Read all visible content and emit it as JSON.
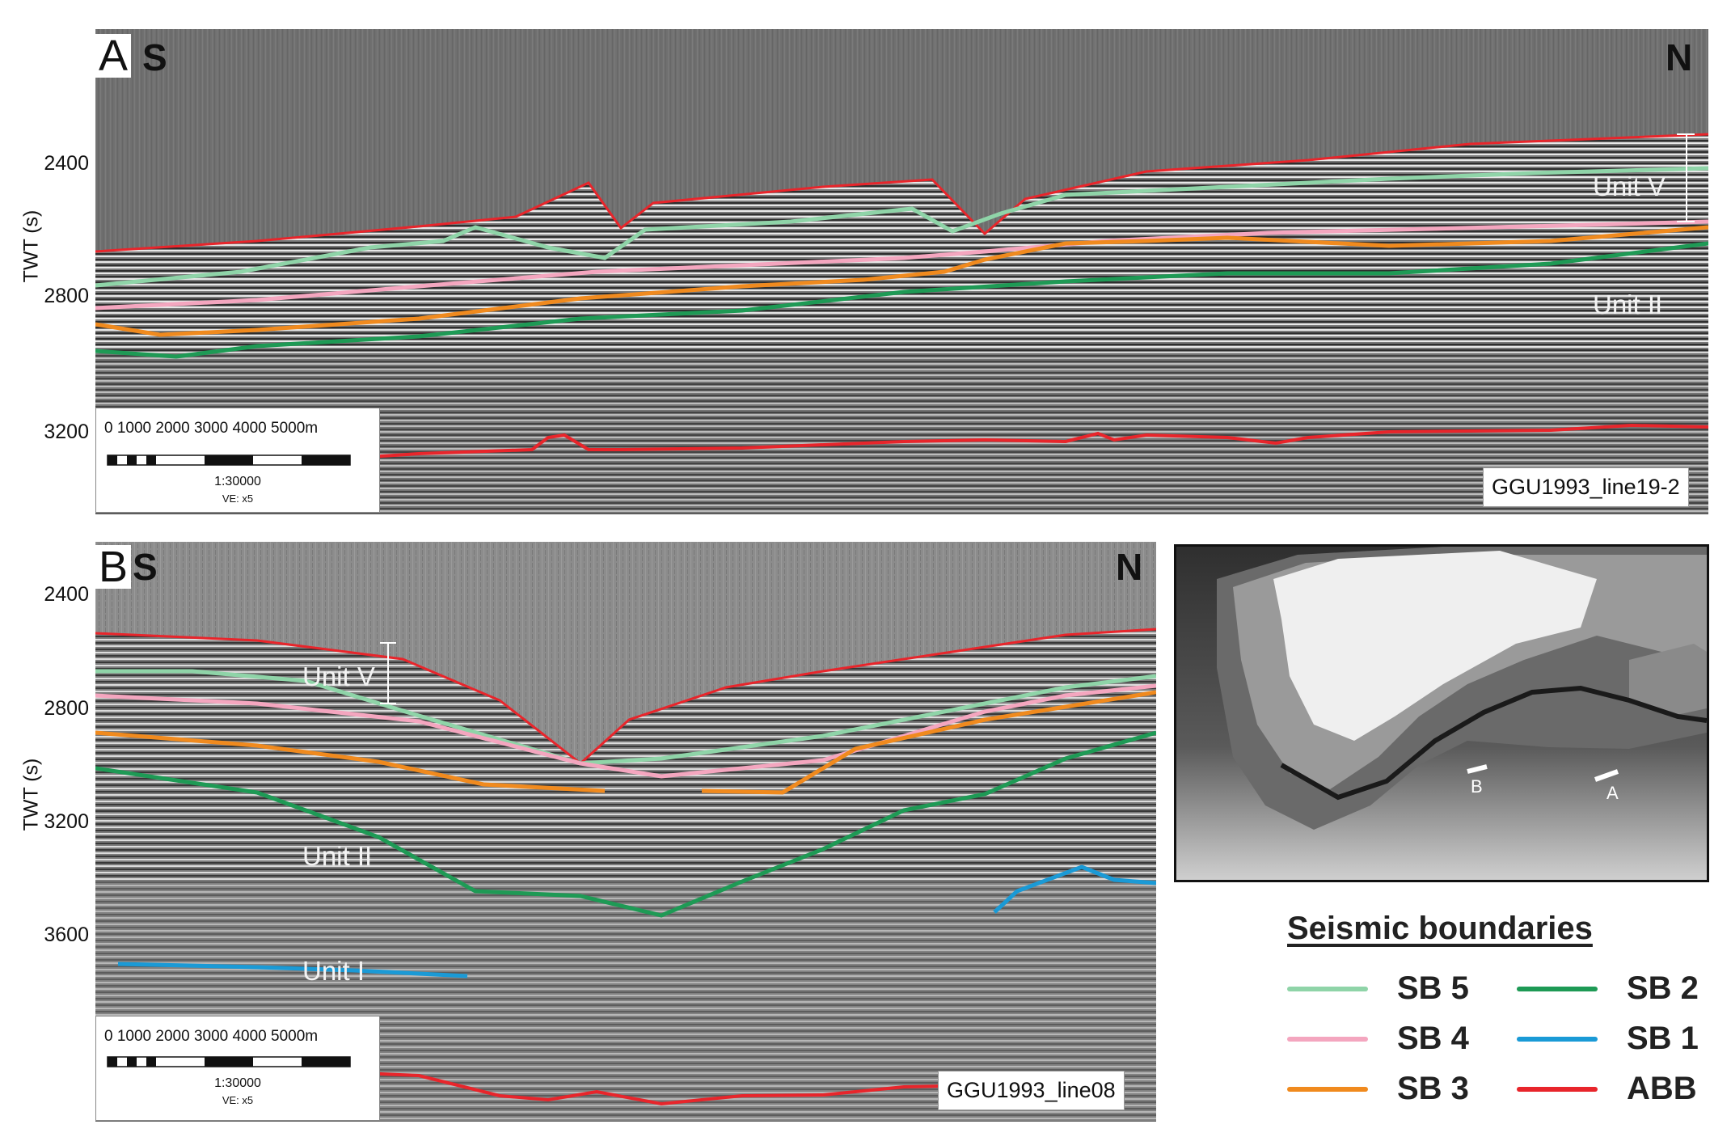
{
  "panel_a": {
    "letter": "A",
    "south_label": "S",
    "north_label": "N",
    "y_axis_label": "TWT (s)",
    "y_ticks": [
      "2400",
      "2800",
      "3200"
    ],
    "units": [
      "Unit V",
      "Unit II"
    ],
    "line_name": "GGU1993_line19-2",
    "scale": {
      "numbers": "0     1000  2000  3000  4000  5000m",
      "ratio": "1:30000",
      "ve": "VE: x5"
    }
  },
  "panel_b": {
    "letter": "B",
    "south_label": "S",
    "north_label": "N",
    "y_axis_label": "TWT (s)",
    "y_ticks": [
      "2400",
      "2800",
      "3200",
      "3600"
    ],
    "units": [
      "Unit V",
      "Unit II",
      "Unit I"
    ],
    "line_name": "GGU1993_line08",
    "scale": {
      "numbers": "0     1000  2000  3000  4000  5000m",
      "ratio": "1:30000",
      "ve": "VE: x5"
    }
  },
  "map": {
    "marker_a": "A",
    "marker_b": "B"
  },
  "legend": {
    "title": "Seismic boundaries",
    "items": [
      {
        "label": "SB 5",
        "color": "#8fd4a8"
      },
      {
        "label": "SB 4",
        "color": "#f4a6bf"
      },
      {
        "label": "SB 3",
        "color": "#f08a1e"
      },
      {
        "label": "SB 2",
        "color": "#1e9a55"
      },
      {
        "label": "SB 1",
        "color": "#1a9ad6"
      },
      {
        "label": "ABB",
        "color": "#e8252b"
      }
    ]
  }
}
